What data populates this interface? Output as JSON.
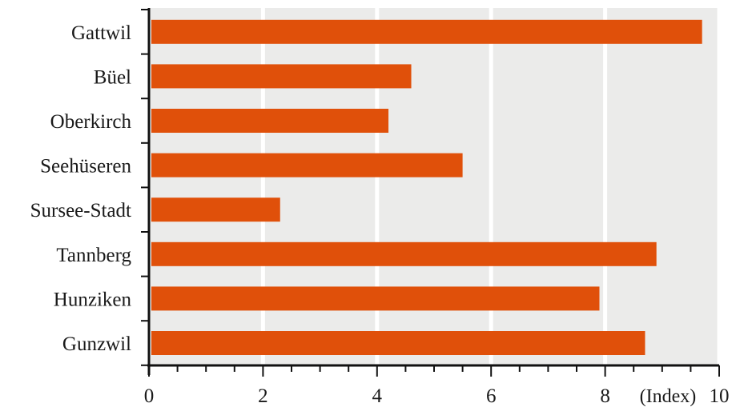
{
  "chart_data": {
    "type": "bar",
    "orientation": "horizontal",
    "categories": [
      "Gattwil",
      "Büel",
      "Oberkirch",
      "Seehüseren",
      "Sursee-Stadt",
      "Tannberg",
      "Hunziken",
      "Gunzwil"
    ],
    "values": [
      9.7,
      4.6,
      4.2,
      5.5,
      2.3,
      8.9,
      7.9,
      8.7
    ],
    "xlim": [
      0,
      10
    ],
    "x_ticks": [
      "0",
      "2",
      "4",
      "6",
      "8",
      "10"
    ],
    "x_unit_label": "(Index)",
    "title": "",
    "grid": true,
    "bar_color": "#e0500a",
    "plot_background": "#ebebea",
    "grid_color": "#ffffff"
  }
}
